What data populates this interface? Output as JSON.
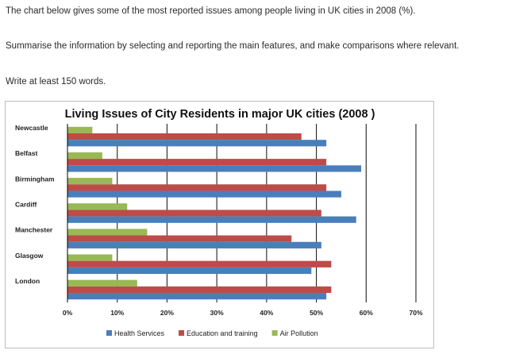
{
  "prompt": {
    "line1": "The chart below gives some of the most reported issues among people living in UK cities in 2008 (%).",
    "line2": "Summarise the information by selecting and reporting the main features, and make comparisons where relevant.",
    "line3": "Write at least 150 words."
  },
  "chart_data": {
    "type": "bar",
    "orientation": "horizontal",
    "title": "Living Issues of City Residents in major UK cities (2008 )",
    "xlabel": "",
    "ylabel": "",
    "categories": [
      "Newcastle",
      "Belfast",
      "Birmingham",
      "Cardiff",
      "Manchester",
      "Glasgow",
      "London"
    ],
    "series": [
      {
        "name": "Health Services",
        "color": "#4a7ebb",
        "values": [
          52,
          59,
          55,
          58,
          51,
          49,
          52
        ]
      },
      {
        "name": "Education and training",
        "color": "#be4b48",
        "values": [
          47,
          52,
          52,
          51,
          45,
          53,
          53
        ]
      },
      {
        "name": "Air Pollution",
        "color": "#98b954",
        "values": [
          5,
          7,
          9,
          12,
          16,
          9,
          14
        ]
      }
    ],
    "xlim": [
      0,
      70
    ],
    "xticks": [
      0,
      10,
      20,
      30,
      40,
      50,
      60,
      70
    ],
    "tick_labels": [
      "0%",
      "10%",
      "20%",
      "30%",
      "40%",
      "50%",
      "60%",
      "70%"
    ],
    "grid": "vertical",
    "legend_position": "bottom"
  }
}
